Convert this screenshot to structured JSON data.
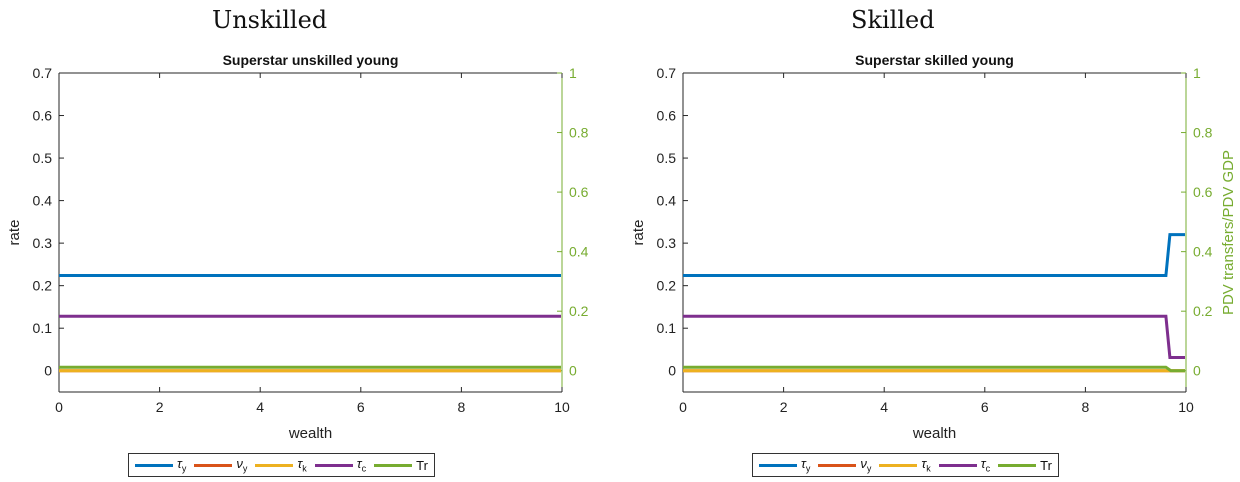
{
  "headings": [
    "Unskilled",
    "Skilled"
  ],
  "colors": {
    "tau_y": "#0072bd",
    "nu_y": "#d95319",
    "tau_k": "#edb120",
    "tau_c": "#7e2f8e",
    "tr": "#77ac30"
  },
  "legend": [
    {
      "base": "τ",
      "sub": "y",
      "key": "tau_y"
    },
    {
      "base": "ν",
      "sub": "y",
      "key": "nu_y"
    },
    {
      "base": "τ",
      "sub": "k",
      "key": "tau_k"
    },
    {
      "base": "τ",
      "sub": "c",
      "key": "tau_c"
    },
    {
      "base": "Tr",
      "sub": "",
      "key": "tr"
    }
  ],
  "chart_data": [
    {
      "type": "line",
      "title": "Superstar unskilled young",
      "xlabel": "wealth",
      "ylabel": "rate",
      "y2label": "",
      "xlim": [
        0,
        10
      ],
      "ylim": [
        -0.05,
        0.7
      ],
      "y2lim": [
        -0.0714,
        1
      ],
      "xticks": [
        "0",
        "2",
        "4",
        "6",
        "8",
        "10"
      ],
      "yticks": [
        "0",
        "0.1",
        "0.2",
        "0.3",
        "0.4",
        "0.5",
        "0.6",
        "0.7"
      ],
      "y2ticks": [
        "0",
        "0.2",
        "0.4",
        "0.6",
        "0.8",
        "1"
      ],
      "legend_position": "bottom",
      "series": [
        {
          "key": "tau_y",
          "axis": "left",
          "x": [
            0,
            10
          ],
          "y": [
            0.224,
            0.224
          ]
        },
        {
          "key": "nu_y",
          "axis": "left",
          "x": [
            0,
            10
          ],
          "y": [
            0,
            0
          ]
        },
        {
          "key": "tau_k",
          "axis": "left",
          "x": [
            0,
            10
          ],
          "y": [
            0,
            0
          ]
        },
        {
          "key": "tau_c",
          "axis": "left",
          "x": [
            0,
            10
          ],
          "y": [
            0.128,
            0.128
          ]
        },
        {
          "key": "tr",
          "axis": "right",
          "x": [
            0,
            10
          ],
          "y": [
            0.012,
            0.012
          ]
        }
      ]
    },
    {
      "type": "line",
      "title": "Superstar skilled young",
      "xlabel": "wealth",
      "ylabel": "rate",
      "y2label": "PDV transfers/PDV GDP",
      "xlim": [
        0,
        10
      ],
      "ylim": [
        -0.05,
        0.7
      ],
      "y2lim": [
        -0.0714,
        1
      ],
      "xticks": [
        "0",
        "2",
        "4",
        "6",
        "8",
        "10"
      ],
      "yticks": [
        "0",
        "0.1",
        "0.2",
        "0.3",
        "0.4",
        "0.5",
        "0.6",
        "0.7"
      ],
      "y2ticks": [
        "0",
        "0.2",
        "0.4",
        "0.6",
        "0.8",
        "1"
      ],
      "legend_position": "bottom",
      "series": [
        {
          "key": "tau_y",
          "axis": "left",
          "x": [
            0,
            9.6,
            9.68,
            10
          ],
          "y": [
            0.224,
            0.224,
            0.32,
            0.32
          ]
        },
        {
          "key": "nu_y",
          "axis": "left",
          "x": [
            0,
            10
          ],
          "y": [
            0,
            0
          ]
        },
        {
          "key": "tau_k",
          "axis": "left",
          "x": [
            0,
            10
          ],
          "y": [
            0,
            0
          ]
        },
        {
          "key": "tau_c",
          "axis": "left",
          "x": [
            0,
            9.6,
            9.68,
            10
          ],
          "y": [
            0.128,
            0.128,
            0.031,
            0.031
          ]
        },
        {
          "key": "tr",
          "axis": "right",
          "x": [
            0,
            9.6,
            9.7,
            10
          ],
          "y": [
            0.012,
            0.012,
            0.0,
            0.0
          ]
        }
      ]
    }
  ]
}
